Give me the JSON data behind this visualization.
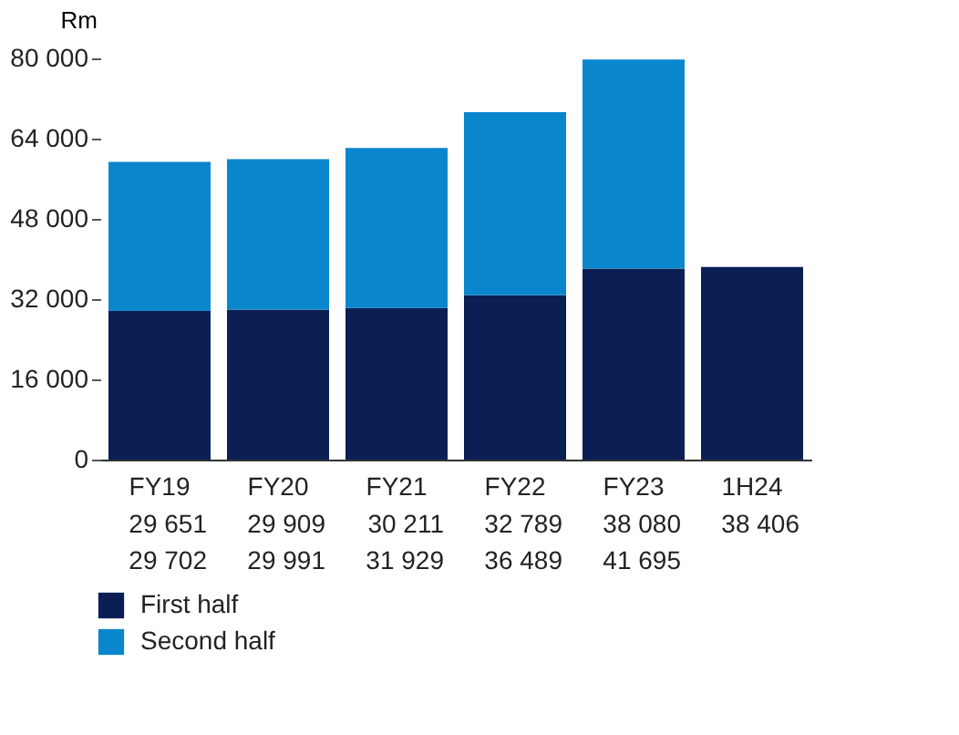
{
  "chart_data": {
    "type": "bar",
    "stacked": true,
    "ylabel": "Rm",
    "categories": [
      "FY19",
      "FY20",
      "FY21",
      "FY22",
      "FY23",
      "1H24"
    ],
    "series": [
      {
        "name": "First half",
        "color": "#0b1f55",
        "values": [
          29651,
          29909,
          30211,
          32789,
          38080,
          38406
        ]
      },
      {
        "name": "Second half",
        "color": "#0a86cc",
        "values": [
          29702,
          29991,
          31929,
          36489,
          41695,
          null
        ]
      }
    ],
    "ylim": [
      0,
      80000
    ],
    "yticks": [
      {
        "value": 0,
        "label": "0"
      },
      {
        "value": 16000,
        "label": "16 000"
      },
      {
        "value": 32000,
        "label": "32 000"
      },
      {
        "value": 48000,
        "label": "48 000"
      },
      {
        "value": 64000,
        "label": "64 000"
      },
      {
        "value": 80000,
        "label": "80 000"
      }
    ],
    "data_labels": true,
    "legend": "bottom left",
    "grid": false
  }
}
